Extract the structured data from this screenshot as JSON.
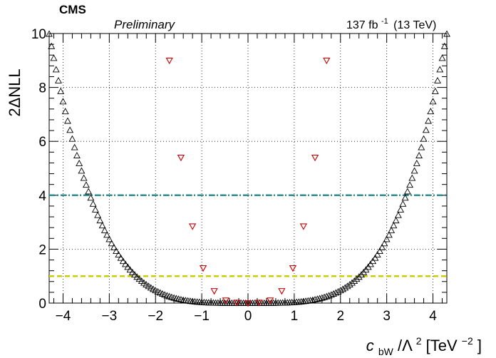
{
  "header": {
    "experiment": "CMS",
    "status": "Preliminary",
    "lumi_value": "137 fb",
    "lumi_exp": "-1",
    "energy": "(13 TeV)"
  },
  "axes": {
    "ylabel": "2ΔNLL",
    "xlabel_c": "c",
    "xlabel_sub": "bW",
    "xlabel_lambda": "/Λ",
    "xlabel_sq": "2",
    "xlabel_unit": "[TeV",
    "xlabel_unit_exp": "−2",
    "xlabel_close": "]"
  },
  "chart_data": {
    "type": "scatter",
    "xlim": [
      -4.3,
      4.3
    ],
    "ylim": [
      0,
      10
    ],
    "x_ticks": [
      -4,
      -3,
      -2,
      -1,
      0,
      1,
      2,
      3,
      4
    ],
    "y_ticks": [
      0,
      2,
      4,
      6,
      8,
      10
    ],
    "x_tick_labels": [
      "−4",
      "−3",
      "−2",
      "−1",
      "0",
      "1",
      "2",
      "3",
      "4"
    ],
    "y_tick_labels": [
      "0",
      "2",
      "4",
      "6",
      "8",
      "10"
    ],
    "grid": true,
    "series": [
      {
        "marker": "open-triangle-up",
        "color": "#000000",
        "curve": "quartic",
        "coefficient": 0.0292,
        "x_range": [
          -4.3,
          4.3
        ],
        "step": 0.05
      },
      {
        "marker": "open-triangle-down",
        "color": "#cc0000",
        "x": [
          -1.7,
          -1.45,
          -1.2,
          -0.97,
          -0.73,
          -0.48,
          -0.24,
          0,
          0.24,
          0.48,
          0.73,
          0.97,
          1.2,
          1.45,
          1.7
        ],
        "y": [
          9.0,
          5.4,
          2.85,
          1.3,
          0.45,
          0.1,
          0.02,
          0.0,
          0.02,
          0.1,
          0.45,
          1.3,
          2.85,
          5.4,
          9.0
        ]
      }
    ],
    "reference_lines": [
      {
        "y": 4,
        "color": "#2a8f8f",
        "style": "dash-dot"
      },
      {
        "y": 1,
        "color": "#cccc00",
        "style": "dashed"
      }
    ]
  }
}
